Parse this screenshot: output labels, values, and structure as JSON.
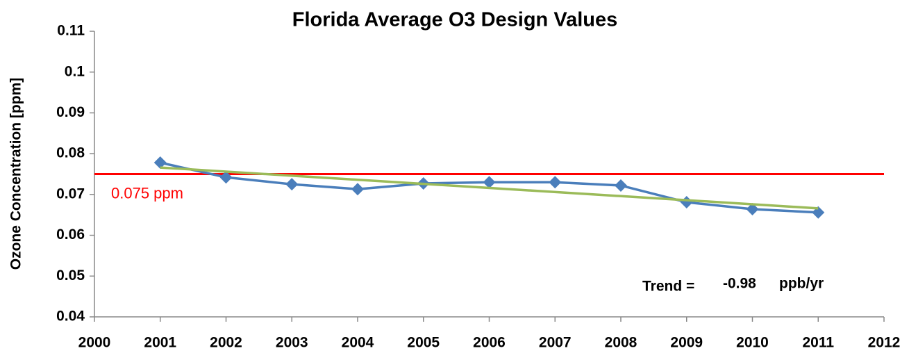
{
  "chart_data": {
    "type": "line",
    "title": "Florida Average O3 Design Values",
    "y_label": "Ozone Concentration [ppm]",
    "x": [
      2001,
      2002,
      2003,
      2004,
      2005,
      2006,
      2007,
      2008,
      2009,
      2010,
      2011
    ],
    "series": [
      {
        "color": "#4a7ebb",
        "marker": "diamond",
        "values": [
          0.0778,
          0.0742,
          0.0725,
          0.0713,
          0.0727,
          0.073,
          0.073,
          0.0722,
          0.0681,
          0.0664,
          0.0656
        ]
      },
      {
        "color": "#9bbb59",
        "x": [
          2001,
          2011
        ],
        "values": [
          0.0766,
          0.0666
        ]
      }
    ],
    "reference_line": {
      "value": 0.075,
      "label": "0.075 ppm",
      "color": "#ff0000"
    },
    "annotation": {
      "label": "Trend =",
      "value": -0.98,
      "unit": "ppb/yr"
    },
    "xlim": [
      2000,
      2012
    ],
    "xticks": [
      2000,
      2001,
      2002,
      2003,
      2004,
      2005,
      2006,
      2007,
      2008,
      2009,
      2010,
      2011,
      2012
    ],
    "ylim": [
      0.04,
      0.11
    ],
    "yticks": [
      0.04,
      0.05,
      0.06,
      0.07,
      0.08,
      0.09,
      0.1,
      0.11
    ],
    "grid": false
  }
}
